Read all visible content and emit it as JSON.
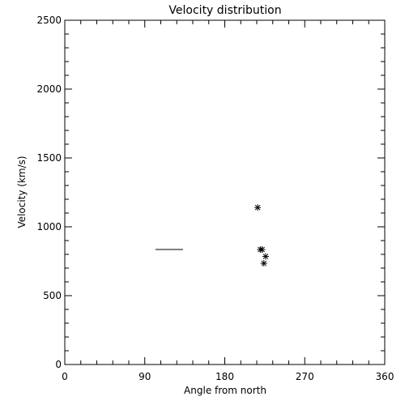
{
  "chart_data": {
    "type": "scatter",
    "title": "Velocity distribution",
    "xlabel": "Angle from north",
    "ylabel": "Velocity (km/s)",
    "xlim": [
      0,
      360
    ],
    "ylim": [
      0,
      2500
    ],
    "x_ticks": [
      0,
      90,
      180,
      270,
      360
    ],
    "y_ticks": [
      0,
      500,
      1000,
      1500,
      2000,
      2500
    ],
    "grid": false,
    "points": [
      {
        "x": 217,
        "y": 1140
      },
      {
        "x": 220,
        "y": 835
      },
      {
        "x": 222,
        "y": 835
      },
      {
        "x": 226,
        "y": 785
      },
      {
        "x": 224,
        "y": 735
      }
    ],
    "segments": [
      {
        "x0": 102,
        "x1": 133,
        "y": 835
      }
    ]
  }
}
